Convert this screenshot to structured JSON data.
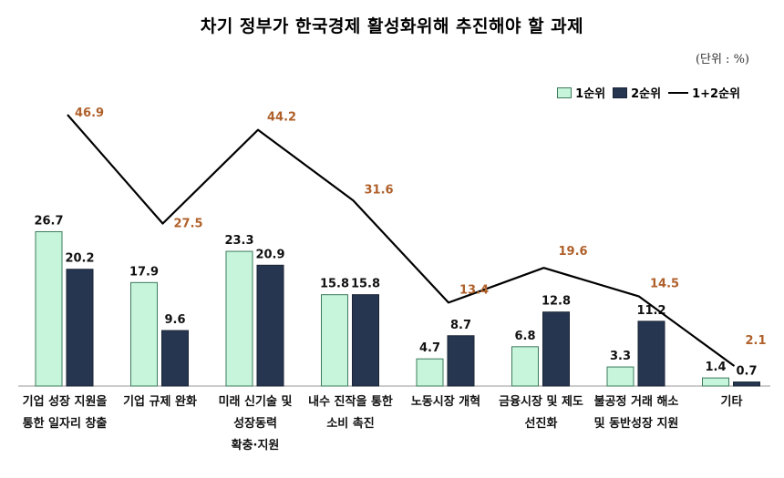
{
  "title": "차기 정부가 한국경제 활성화위해 추진해야 할 과제",
  "unit": "(단위 : %)",
  "legend": {
    "first": "1순위",
    "second": "2순위",
    "total": "1+2순위"
  },
  "colors": {
    "first": "#c6f5dc",
    "first_border": "#3c7a5a",
    "second": "#263650",
    "line": "#000000",
    "total_label": "#b0602a"
  },
  "chart_data": {
    "type": "bar",
    "categories": [
      "기업 성장 지원을\n통한 일자리 창출",
      "기업 규제 완화",
      "미래 신기술 및\n성장동력\n확충·지원",
      "내수 진작을 통한\n소비 촉진",
      "노동시장 개혁",
      "금융시장 및 제도\n선진화",
      "불공정 거래 해소\n및 동반성장 지원",
      "기타"
    ],
    "series": [
      {
        "name": "1순위",
        "type": "bar",
        "values": [
          26.7,
          17.9,
          23.3,
          15.8,
          4.7,
          6.8,
          3.3,
          1.4
        ]
      },
      {
        "name": "2순위",
        "type": "bar",
        "values": [
          20.2,
          9.6,
          20.9,
          15.8,
          8.7,
          12.8,
          11.2,
          0.7
        ]
      },
      {
        "name": "1+2순위",
        "type": "line",
        "values": [
          46.9,
          27.5,
          44.2,
          31.6,
          13.4,
          19.6,
          14.5,
          2.1
        ]
      }
    ],
    "value_labels": {
      "first": [
        "26.7",
        "17.9",
        "23.3",
        "15.8",
        "4.7",
        "6.8",
        "3.3",
        "1.4"
      ],
      "second": [
        "20.2",
        "9.6",
        "20.9",
        "15.8",
        "8.7",
        "12.8",
        "11.2",
        "0.7"
      ],
      "total": [
        "46.9",
        "27.5",
        "44.2",
        "31.6",
        "13.4",
        "19.6",
        "14.5",
        "2.1"
      ]
    },
    "legend_position": "top-right",
    "grid": false
  }
}
